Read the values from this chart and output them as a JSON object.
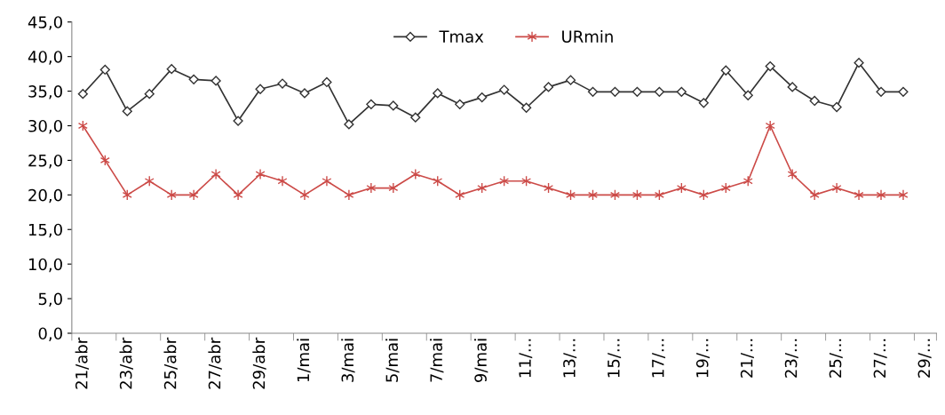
{
  "chart_data": {
    "type": "line",
    "categories": [
      "21/abr",
      null,
      "23/abr",
      null,
      "25/abr",
      null,
      "27/abr",
      null,
      "29/abr",
      null,
      "1/mai",
      null,
      "3/mai",
      null,
      "5/mai",
      null,
      "7/mai",
      null,
      "9/mai",
      null,
      "11/...",
      null,
      "13/...",
      null,
      "15/...",
      null,
      "17/...",
      null,
      "19/...",
      null,
      "21/...",
      null,
      "23/...",
      null,
      "25/...",
      null,
      "27/...",
      null,
      "29/..."
    ],
    "series": [
      {
        "name": "Tmax",
        "color": "#333333",
        "marker": "diamond",
        "values": [
          34.6,
          38.1,
          32.1,
          34.6,
          38.2,
          36.7,
          36.5,
          30.7,
          35.3,
          36.1,
          34.7,
          36.3,
          30.2,
          33.1,
          32.9,
          31.2,
          34.7,
          33.1,
          34.1,
          35.2,
          32.6,
          35.6,
          36.6,
          34.9,
          34.9,
          34.9,
          34.9,
          34.9,
          33.3,
          38.0,
          34.4,
          38.6,
          35.6,
          33.6,
          32.7,
          39.1,
          34.9,
          34.9,
          null
        ]
      },
      {
        "name": "URmin",
        "color": "#cc4b48",
        "marker": "cross",
        "values": [
          30,
          25,
          20,
          22,
          20,
          20,
          23,
          20,
          23,
          22,
          20,
          22,
          20,
          21,
          21,
          23,
          22,
          20,
          21,
          22,
          22,
          21,
          20,
          20,
          20,
          20,
          20,
          21,
          20,
          21,
          22,
          30,
          23,
          20,
          21,
          20,
          20,
          20,
          null
        ]
      }
    ],
    "ylim": [
      0,
      45
    ],
    "yticks": [
      {
        "value": 0,
        "label": "0,0"
      },
      {
        "value": 5,
        "label": "5,0"
      },
      {
        "value": 10,
        "label": "10,0"
      },
      {
        "value": 15,
        "label": "15,0"
      },
      {
        "value": 20,
        "label": "20,0"
      },
      {
        "value": 25,
        "label": "25,0"
      },
      {
        "value": 30,
        "label": "30,0"
      },
      {
        "value": 35,
        "label": "35,0"
      },
      {
        "value": 40,
        "label": "40,0"
      },
      {
        "value": 45,
        "label": "45,0"
      }
    ],
    "grid": false,
    "legend": "top",
    "line_style": "solid"
  }
}
